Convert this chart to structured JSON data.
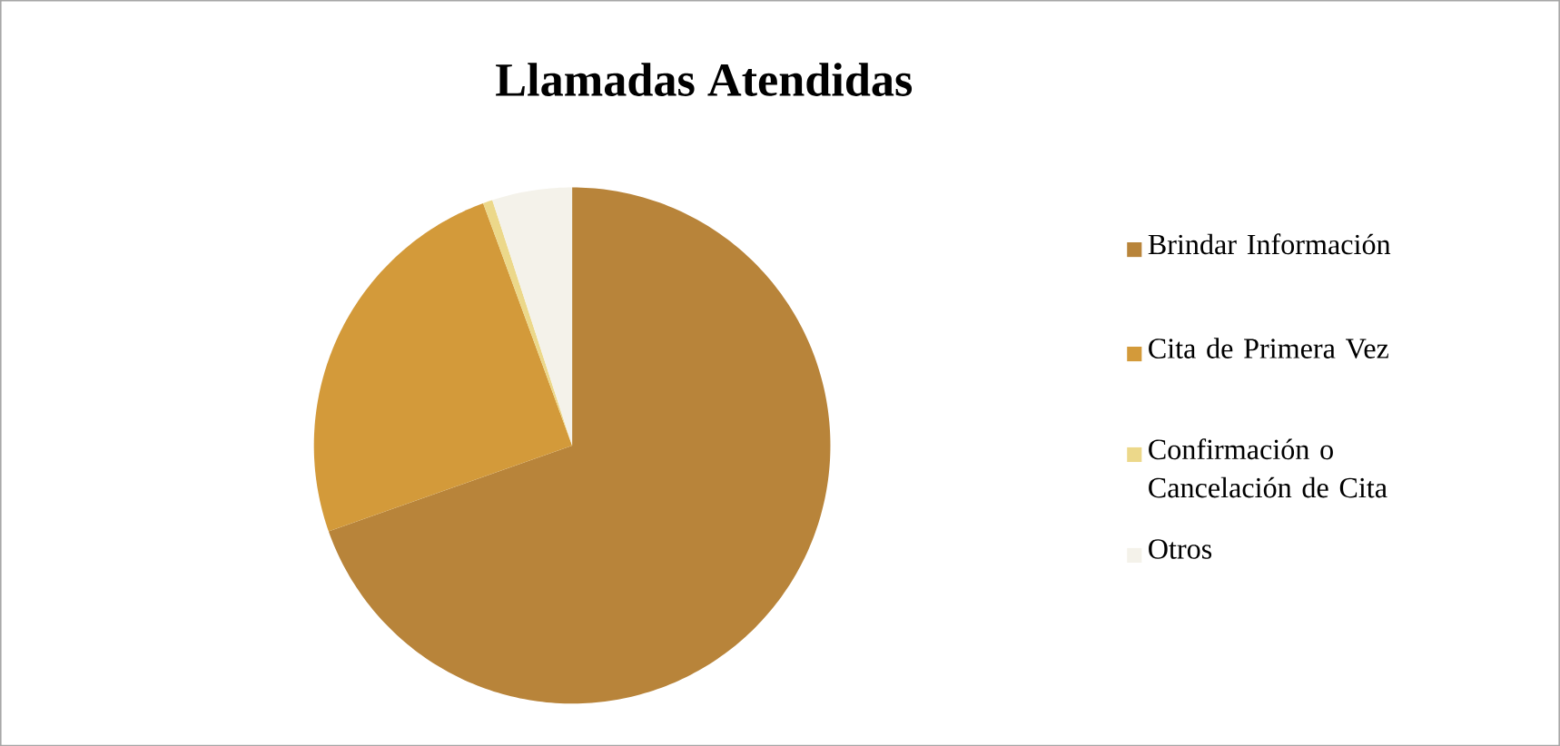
{
  "chart_data": {
    "type": "pie",
    "title": "Llamadas Atendidas",
    "categories": [
      "Brindar Información",
      "Cita de Primera Vez",
      "Confirmación o Cancelación de Cita",
      "Otros"
    ],
    "values": [
      69.6,
      24.8,
      0.6,
      5.0
    ],
    "colors": [
      "#b8843a",
      "#d39a3a",
      "#ecd88a",
      "#f4f2ea"
    ],
    "legend": "right"
  }
}
